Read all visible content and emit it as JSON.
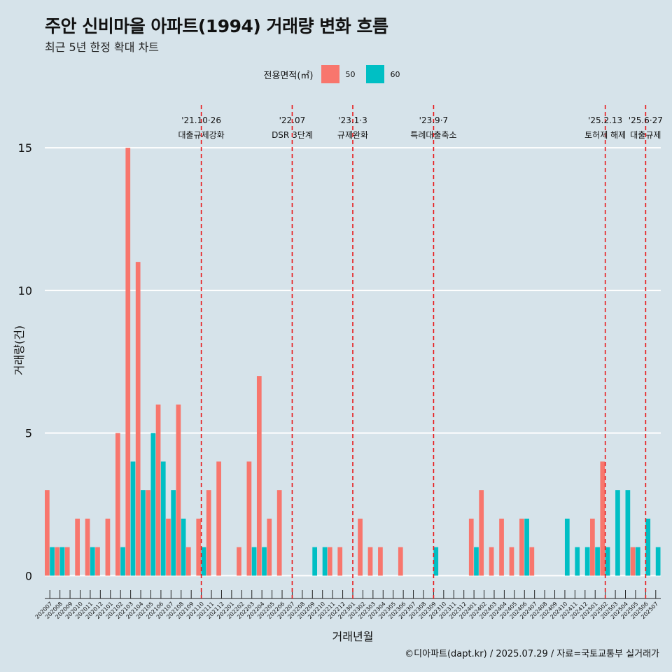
{
  "title": "주안 신비마을 아파트(1994) 거래량 변화 흐름",
  "subtitle": "최근 5년 한정 확대 차트",
  "caption": "©디아파트(dapt.kr) / 2025.07.29 / 자료=국토교통부 실거래가",
  "legend": {
    "title": "전용면적(㎡)",
    "items": [
      {
        "label": "50",
        "color": "#f8766d"
      },
      {
        "label": "60",
        "color": "#00bfc4"
      }
    ]
  },
  "chart_data": {
    "type": "bar",
    "title": "주안 신비마을 아파트(1994) 거래량 변화 흐름",
    "xlabel": "거래년월",
    "ylabel": "거래량(건)",
    "ylim": [
      -0.8,
      16.5
    ],
    "yticks": [
      0,
      5,
      10,
      15
    ],
    "categories": [
      "202007",
      "202008",
      "202009",
      "202010",
      "202011",
      "202012",
      "202101",
      "202102",
      "202103",
      "202104",
      "202105",
      "202106",
      "202107",
      "202108",
      "202109",
      "202110",
      "202111",
      "202112",
      "202201",
      "202202",
      "202203",
      "202204",
      "202205",
      "202206",
      "202207",
      "202208",
      "202209",
      "202210",
      "202211",
      "202212",
      "202301",
      "202302",
      "202303",
      "202304",
      "202305",
      "202306",
      "202307",
      "202308",
      "202309",
      "202310",
      "202311",
      "202312",
      "202401",
      "202402",
      "202403",
      "202404",
      "202405",
      "202406",
      "202407",
      "202408",
      "202409",
      "202410",
      "202411",
      "202412",
      "202501",
      "202502",
      "202503",
      "202504",
      "202505",
      "202506",
      "202507"
    ],
    "series": [
      {
        "name": "50",
        "color": "#f8766d",
        "values": [
          3,
          1,
          1,
          2,
          2,
          1,
          2,
          5,
          15,
          11,
          3,
          6,
          2,
          6,
          1,
          2,
          3,
          4,
          0,
          1,
          4,
          7,
          2,
          3,
          0,
          0,
          0,
          0,
          1,
          1,
          0,
          2,
          1,
          1,
          0,
          1,
          0,
          0,
          0,
          0,
          0,
          0,
          2,
          3,
          1,
          2,
          1,
          2,
          1,
          0,
          0,
          0,
          0,
          0,
          2,
          4,
          0,
          0,
          1,
          0,
          0
        ]
      },
      {
        "name": "60",
        "color": "#00bfc4",
        "values": [
          1,
          1,
          0,
          0,
          1,
          0,
          0,
          1,
          4,
          3,
          5,
          4,
          3,
          2,
          0,
          1,
          0,
          0,
          0,
          0,
          1,
          1,
          0,
          0,
          0,
          0,
          1,
          1,
          0,
          0,
          0,
          0,
          0,
          0,
          0,
          0,
          0,
          0,
          1,
          0,
          0,
          0,
          1,
          0,
          0,
          0,
          0,
          2,
          0,
          0,
          0,
          2,
          1,
          1,
          1,
          1,
          3,
          3,
          1,
          2,
          1
        ]
      }
    ],
    "events": [
      {
        "category": "202110",
        "date": "'21.10·26",
        "label": "대출규제강화"
      },
      {
        "category": "202207",
        "date": "'22.07",
        "label": "DSR 3단계"
      },
      {
        "category": "202301",
        "date": "'23.1·3",
        "label": "규제완화"
      },
      {
        "category": "202309",
        "date": "'23.9·7",
        "label": "특례대출축소"
      },
      {
        "category": "202502",
        "date": "'25.2.13",
        "label": "토허제 해제"
      },
      {
        "category": "202506",
        "date": "'25.6·27",
        "label": "대출규제"
      }
    ]
  }
}
